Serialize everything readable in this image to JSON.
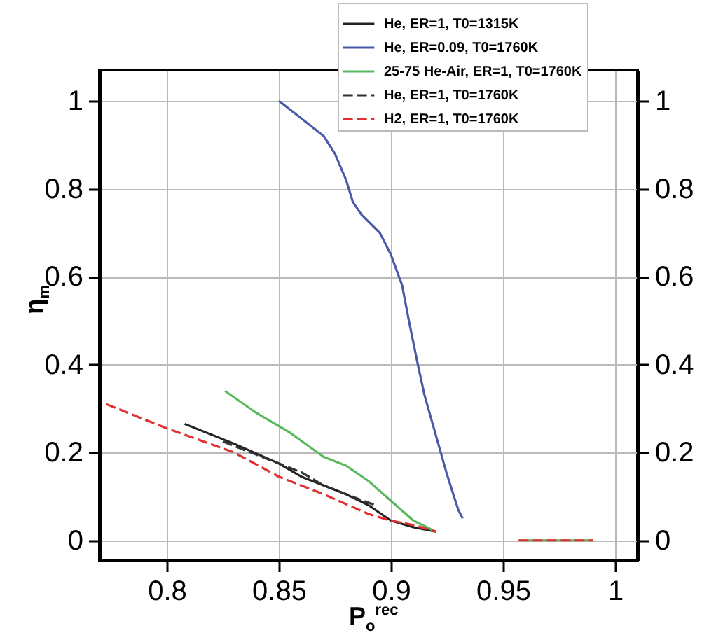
{
  "chart_data": {
    "type": "line",
    "xlabel": "P$_{o}$$^{rec}$",
    "ylabel": "η$_{m}$",
    "xlim": [
      0.77,
      1.01
    ],
    "xticks": [
      0.8,
      0.85,
      0.9,
      0.95,
      1
    ],
    "ylim": [
      -0.045,
      1.07
    ],
    "yticks": [
      0,
      0.2,
      0.4,
      0.6,
      0.8,
      1
    ],
    "y2lim": [
      -0.045,
      1.07
    ],
    "y2ticks": [
      0,
      0.2,
      0.4,
      0.6,
      0.8,
      1
    ],
    "grid": true,
    "legend": "top right",
    "series": [
      {
        "name": "He, ER=1, T0=1315K",
        "color": "#222222",
        "line_style": "solid",
        "x": [
          0.808,
          0.83,
          0.85,
          0.86,
          0.87,
          0.88,
          0.89,
          0.9,
          0.91,
          0.92
        ],
        "values": [
          0.265,
          0.22,
          0.175,
          0.145,
          0.125,
          0.105,
          0.08,
          0.045,
          0.03,
          0.02
        ]
      },
      {
        "name": "He, ER=0.09, T0=1760K",
        "color": "#4a5aa8",
        "line_style": "solid",
        "x": [
          0.85,
          0.86,
          0.87,
          0.875,
          0.88,
          0.883,
          0.887,
          0.895,
          0.9,
          0.905,
          0.908,
          0.912,
          0.915,
          0.92,
          0.925,
          0.93,
          0.932
        ],
        "values": [
          1.0,
          0.96,
          0.92,
          0.88,
          0.82,
          0.77,
          0.74,
          0.7,
          0.65,
          0.58,
          0.5,
          0.4,
          0.33,
          0.24,
          0.15,
          0.07,
          0.05
        ]
      },
      {
        "name": "25-75 He-Air, ER=1, T0=1760K",
        "color": "#5cb85c",
        "line_style": "solid",
        "x": [
          0.826,
          0.84,
          0.855,
          0.87,
          0.88,
          0.89,
          0.9,
          0.91,
          0.92,
          0.94,
          0.957,
          0.99
        ],
        "values": [
          0.34,
          0.29,
          0.245,
          0.19,
          0.17,
          0.135,
          0.09,
          0.045,
          0.02,
          null,
          0,
          0
        ]
      },
      {
        "name": "He, ER=1, T0=1760K",
        "color": "#333333",
        "line_style": "dashed",
        "x": [
          0.825,
          0.84,
          0.86,
          0.87,
          0.88,
          0.893
        ],
        "values": [
          0.225,
          0.195,
          0.155,
          0.125,
          0.105,
          0.08
        ]
      },
      {
        "name": "H2, ER=1, T0=1760K",
        "color": "#e03030",
        "line_style": "dashed",
        "x": [
          0.773,
          0.8,
          0.83,
          0.85,
          0.87,
          0.89,
          0.9,
          0.91,
          0.92,
          0.94,
          0.957,
          0.99
        ],
        "values": [
          0.31,
          0.255,
          0.2,
          0.145,
          0.105,
          0.06,
          0.045,
          0.035,
          0.02,
          null,
          0,
          0
        ]
      }
    ]
  }
}
